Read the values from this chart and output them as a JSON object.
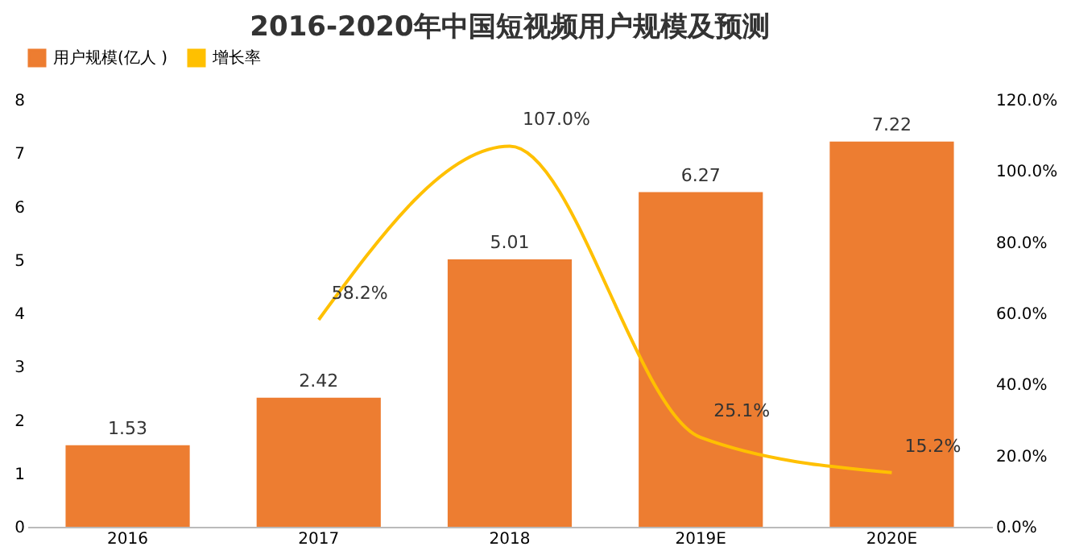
{
  "chart_data": {
    "type": "bar",
    "title": "2016-2020年中国短视频用户规模及预测",
    "categories": [
      "2016",
      "2017",
      "2018",
      "2019E",
      "2020E"
    ],
    "series": [
      {
        "name": "用户规模(亿人 )",
        "color": "#ed7d31",
        "values": [
          1.53,
          2.42,
          5.01,
          6.27,
          7.22
        ],
        "value_labels": [
          "1.53",
          "2.42",
          "5.01",
          "6.27",
          "7.22"
        ]
      },
      {
        "name": "增长率",
        "type": "line",
        "axis": "y2",
        "color": "#ffc000",
        "values": [
          null,
          58.2,
          107.0,
          25.1,
          15.2
        ],
        "value_labels": [
          null,
          "58.2%",
          "107.0%",
          "25.1%",
          "15.2%"
        ]
      }
    ],
    "ylim": [
      0,
      8
    ],
    "yticks": [
      0,
      1,
      2,
      3,
      4,
      5,
      6,
      7,
      8
    ],
    "y2lim": [
      0,
      120
    ],
    "y2ticks": [
      {
        "value": 0,
        "label": "0.0%"
      },
      {
        "value": 20,
        "label": "20.0%"
      },
      {
        "value": 40,
        "label": "40.0%"
      },
      {
        "value": 60,
        "label": "60.0%"
      },
      {
        "value": 80,
        "label": "80.0%"
      },
      {
        "value": 100,
        "label": "100.0%"
      },
      {
        "value": 120,
        "label": "120.0%"
      }
    ],
    "grid": false,
    "legend": "top",
    "marker": "none",
    "line_style": "solid"
  }
}
